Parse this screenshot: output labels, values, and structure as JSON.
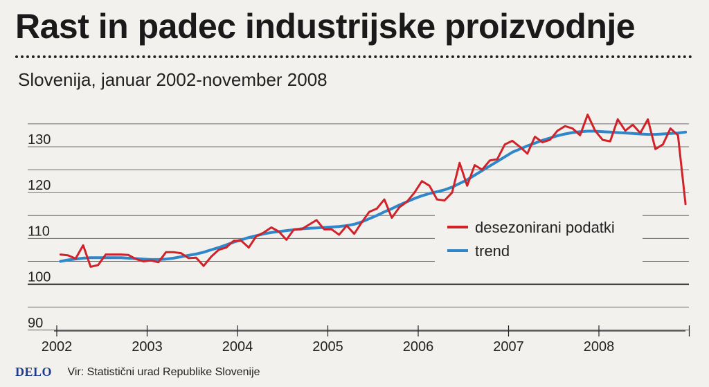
{
  "header": {
    "title": "Rast in padec industrijske proizvodnje",
    "subtitle": "Slovenija, januar 2002-november 2008"
  },
  "footer": {
    "logo": "DELO",
    "source": "Vir: Statistični urad Republike Slovenije"
  },
  "colors": {
    "series_data": "#d12229",
    "series_trend": "#2f86c8",
    "grid": "#6e6e6e",
    "baseline": "#222222"
  },
  "chart_data": {
    "type": "line",
    "title": "Rast in padec industrijske proizvodnje",
    "subtitle": "Slovenija, januar 2002-november 2008",
    "xlabel": "",
    "ylabel": "",
    "xlim": [
      2002,
      2009
    ],
    "ylim": [
      90,
      137
    ],
    "yticks": [
      90,
      100,
      110,
      120,
      130
    ],
    "xticks": [
      "2002",
      "2003",
      "2004",
      "2005",
      "2006",
      "2007",
      "2008"
    ],
    "grid": true,
    "baseline": 100,
    "legend_position": "right",
    "series": [
      {
        "name": "desezonirani podatki",
        "color": "#d12229",
        "values": [
          106.5,
          106.3,
          105.6,
          108.5,
          103.8,
          104.2,
          106.5,
          106.5,
          106.5,
          106.4,
          105.5,
          105.0,
          105.2,
          104.8,
          107.0,
          107.0,
          106.8,
          105.7,
          105.8,
          104.0,
          106.0,
          107.5,
          108.0,
          109.5,
          109.5,
          108.0,
          110.5,
          111.3,
          112.4,
          111.5,
          109.7,
          112.0,
          112.0,
          113.0,
          114.0,
          112.0,
          112.0,
          110.8,
          112.8,
          111.0,
          113.5,
          115.8,
          116.5,
          118.5,
          114.5,
          116.8,
          118.0,
          120.0,
          122.5,
          121.5,
          118.5,
          118.3,
          120.0,
          126.5,
          121.5,
          126.0,
          125.0,
          127.0,
          127.3,
          130.5,
          131.3,
          130.0,
          128.5,
          132.2,
          131.0,
          131.5,
          133.5,
          134.5,
          134.0,
          132.5,
          137.0,
          133.5,
          131.5,
          131.2,
          136.0,
          133.5,
          134.8,
          133.0,
          136.0,
          129.5,
          130.5,
          134.0,
          132.5,
          117.5
        ]
      },
      {
        "name": "trend",
        "color": "#2f86c8",
        "values": [
          105.0,
          105.3,
          105.5,
          105.7,
          105.8,
          105.8,
          105.8,
          105.8,
          105.8,
          105.7,
          105.6,
          105.5,
          105.4,
          105.4,
          105.5,
          105.7,
          106.0,
          106.3,
          106.6,
          107.0,
          107.5,
          108.0,
          108.6,
          109.2,
          109.7,
          110.2,
          110.6,
          111.0,
          111.3,
          111.5,
          111.7,
          111.9,
          112.1,
          112.2,
          112.3,
          112.4,
          112.5,
          112.6,
          112.8,
          113.1,
          113.6,
          114.3,
          115.0,
          115.8,
          116.5,
          117.3,
          118.0,
          118.7,
          119.3,
          119.8,
          120.2,
          120.6,
          121.2,
          122.0,
          122.8,
          123.8,
          124.8,
          125.8,
          126.8,
          127.8,
          128.8,
          129.5,
          130.2,
          130.8,
          131.4,
          131.9,
          132.4,
          132.8,
          133.1,
          133.3,
          133.4,
          133.4,
          133.3,
          133.2,
          133.1,
          133.0,
          132.9,
          132.8,
          132.7,
          132.7,
          132.8,
          132.9,
          133.0,
          133.2
        ]
      }
    ]
  }
}
